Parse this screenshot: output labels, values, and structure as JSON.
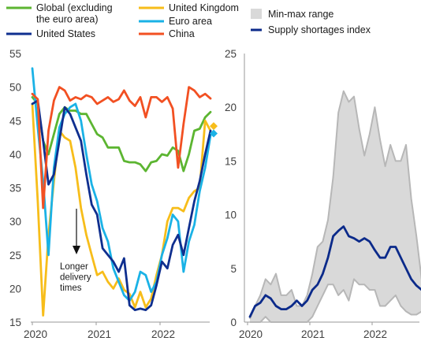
{
  "colors": {
    "global": "#5cb531",
    "us": "#0f2f8f",
    "uk": "#f7bd1a",
    "euro": "#1ab2e6",
    "china": "#f25022",
    "range_fill": "#d9d9d9",
    "range_edge": "#b7b7b7",
    "supply": "#0b2a8a"
  },
  "chart_data": [
    {
      "type": "line",
      "title": "",
      "xlabel": "",
      "ylabel": "",
      "ylim": [
        15,
        55
      ],
      "yticks": [
        "15",
        "20",
        "25",
        "30",
        "35",
        "40",
        "45",
        "50",
        "55"
      ],
      "xticks": [
        "2020",
        "2021",
        "2022"
      ],
      "legend": {
        "placement": "top",
        "entries": [
          "Global (excluding the euro area)",
          "United States",
          "United Kingdom",
          "Euro area",
          "China"
        ],
        "global_lines": [
          "Global (excluding",
          "the euro area)"
        ]
      },
      "annotation": [
        "Longer",
        "delivery",
        "times"
      ],
      "x_start": "2020-01",
      "series": [
        {
          "name": "Global (excluding the euro area)",
          "color_key": "global",
          "values": [
            48.5,
            47.5,
            42,
            40,
            43,
            46,
            47,
            46.5,
            46.5,
            46,
            46,
            44.5,
            43,
            42.5,
            41,
            41,
            41,
            39,
            38.8,
            38.8,
            38.5,
            37.5,
            38.8,
            39,
            40,
            39.8,
            41,
            40.5,
            37.5,
            40,
            43.5,
            43.8,
            45.5,
            46.3
          ]
        },
        {
          "name": "United States",
          "color_key": "us",
          "values": [
            47.5,
            48,
            42,
            35.5,
            37,
            42,
            47,
            46,
            44,
            42,
            37,
            32.5,
            31,
            26,
            25,
            24,
            22.5,
            24.5,
            17.5,
            16.8,
            17,
            16.8,
            17.5,
            20.5,
            24,
            23,
            26.5,
            28,
            25,
            29,
            33,
            36,
            40,
            43.5
          ]
        },
        {
          "name": "United Kingdom",
          "color_key": "uk",
          "values": [
            47.5,
            33,
            16,
            28,
            36,
            43.5,
            42.5,
            42,
            38,
            32,
            28,
            25,
            22,
            22.5,
            21,
            20,
            21.5,
            19.8,
            19.2,
            17.2,
            19.5,
            17.2,
            18.5,
            22,
            25,
            30,
            32,
            32,
            31.5,
            33.5,
            34.5,
            35,
            45,
            43.5
          ]
        },
        {
          "name": "Euro area",
          "color_key": "euro",
          "values": [
            52.8,
            44,
            36,
            25,
            38,
            44,
            46,
            47,
            47.5,
            45,
            40,
            35.5,
            33,
            29,
            27,
            23,
            21,
            19,
            18.2,
            19.5,
            22.5,
            22,
            19.5,
            21,
            25,
            27.5,
            31,
            30,
            22.5,
            27,
            29.5,
            34.5,
            38,
            42.8
          ]
        },
        {
          "name": "China",
          "color_key": "china",
          "values": [
            49,
            48.2,
            32,
            43.5,
            48,
            50,
            49.5,
            48,
            48.5,
            48.2,
            48.8,
            48.5,
            47.5,
            48,
            48.5,
            47.8,
            48.2,
            49.5,
            48,
            47.2,
            48.5,
            45.5,
            48.5,
            48.5,
            47.8,
            48.5,
            46.8,
            38,
            44.5,
            50,
            49.5,
            48.5,
            49,
            48.3
          ]
        }
      ],
      "end_markers": [
        {
          "color_key": "uk",
          "value": 44.2
        },
        {
          "color_key": "euro",
          "value": 43.1
        }
      ]
    },
    {
      "type": "area",
      "title": "",
      "xlabel": "",
      "ylabel": "",
      "ylim": [
        0,
        25
      ],
      "yticks": [
        "0",
        "5",
        "10",
        "15",
        "20",
        "25"
      ],
      "xticks": [
        "2020",
        "2021",
        "2022"
      ],
      "legend": {
        "placement": "top",
        "entries": [
          "Min-max range",
          "Supply shortages index"
        ]
      },
      "x_start": "2020-01",
      "range_max": [
        0.3,
        1.5,
        2.5,
        4,
        3.5,
        4.5,
        2.5,
        2.5,
        3,
        1.5,
        1.5,
        2.5,
        4.5,
        7,
        7.5,
        9.5,
        13.5,
        19.5,
        21.5,
        20.5,
        21,
        18,
        15.5,
        17.5,
        20,
        17,
        14.5,
        16.5,
        15,
        15,
        16.5,
        11.5,
        8,
        4
      ],
      "range_min": [
        0,
        0,
        0,
        0.5,
        0,
        0,
        0,
        0,
        0,
        0,
        0,
        0,
        0.5,
        1.5,
        2.5,
        3.5,
        3.5,
        2.5,
        3,
        2,
        4,
        3.5,
        3.5,
        3,
        3,
        1.5,
        1.5,
        2,
        2.5,
        1.5,
        1,
        0.7,
        0.7,
        1
      ],
      "series": [
        {
          "name": "Supply shortages index",
          "color_key": "supply",
          "values": [
            0.5,
            1.5,
            1.8,
            2.5,
            2.2,
            1.5,
            1.2,
            1.2,
            1.5,
            2,
            1.5,
            2,
            3,
            3.5,
            4.5,
            6,
            8,
            8.5,
            8.9,
            8,
            7.8,
            7.5,
            7.8,
            7.5,
            6.7,
            6,
            6,
            7,
            7,
            6,
            5,
            4,
            3.4,
            3
          ]
        }
      ]
    }
  ]
}
